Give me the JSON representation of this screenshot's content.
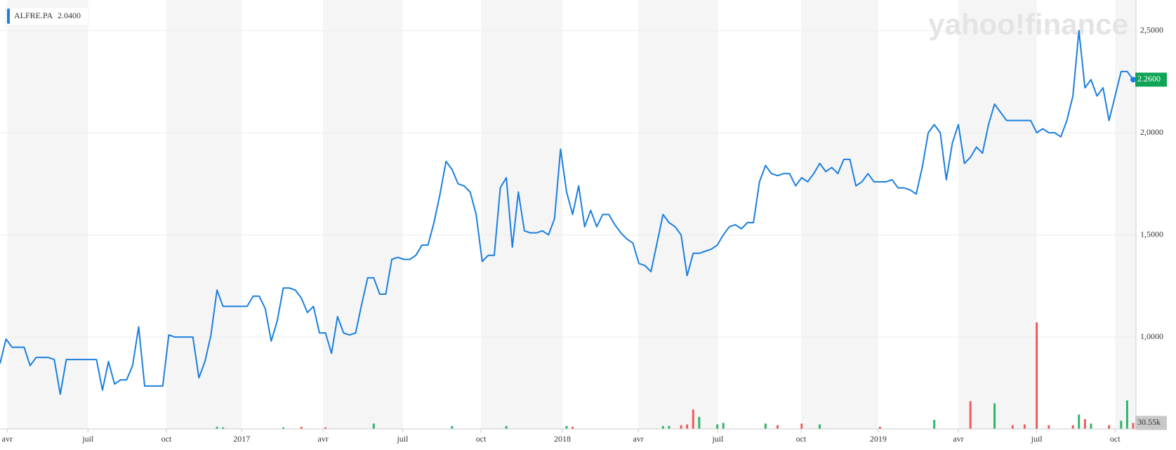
{
  "chart_data": [
    {
      "type": "line",
      "series": [
        {
          "name": "ALFRE.PA",
          "color": "#1a7fe0",
          "values": [
            0.87,
            0.99,
            0.95,
            0.95,
            0.95,
            0.86,
            0.9,
            0.9,
            0.9,
            0.89,
            0.72,
            0.89,
            0.89,
            0.89,
            0.89,
            0.89,
            0.89,
            0.74,
            0.88,
            0.77,
            0.79,
            0.79,
            0.86,
            1.05,
            0.76,
            0.76,
            0.76,
            0.76,
            1.01,
            1.0,
            1.0,
            1.0,
            1.0,
            0.8,
            0.88,
            1.01,
            1.23,
            1.15,
            1.15,
            1.15,
            1.15,
            1.15,
            1.2,
            1.2,
            1.14,
            0.98,
            1.08,
            1.24,
            1.24,
            1.23,
            1.19,
            1.12,
            1.15,
            1.02,
            1.02,
            0.92,
            1.1,
            1.02,
            1.01,
            1.02,
            1.16,
            1.29,
            1.29,
            1.21,
            1.21,
            1.38,
            1.39,
            1.38,
            1.38,
            1.4,
            1.45,
            1.45,
            1.56,
            1.7,
            1.86,
            1.82,
            1.75,
            1.74,
            1.71,
            1.6,
            1.37,
            1.4,
            1.4,
            1.73,
            1.78,
            1.44,
            1.71,
            1.52,
            1.51,
            1.51,
            1.52,
            1.5,
            1.58,
            1.92,
            1.71,
            1.6,
            1.74,
            1.54,
            1.62,
            1.54,
            1.6,
            1.6,
            1.55,
            1.51,
            1.48,
            1.46,
            1.36,
            1.35,
            1.32,
            1.46,
            1.6,
            1.56,
            1.54,
            1.5,
            1.3,
            1.41,
            1.41,
            1.42,
            1.43,
            1.45,
            1.5,
            1.54,
            1.55,
            1.53,
            1.56,
            1.56,
            1.76,
            1.84,
            1.8,
            1.79,
            1.8,
            1.8,
            1.74,
            1.78,
            1.76,
            1.8,
            1.85,
            1.81,
            1.83,
            1.8,
            1.87,
            1.87,
            1.74,
            1.76,
            1.8,
            1.76,
            1.76,
            1.76,
            1.77,
            1.73,
            1.73,
            1.72,
            1.7,
            1.83,
            2.0,
            2.04,
            2.0,
            1.77,
            1.95,
            2.04,
            1.85,
            1.88,
            1.93,
            1.9,
            2.04,
            2.14,
            2.1,
            2.06,
            2.06,
            2.06,
            2.06,
            2.06,
            2.0,
            2.02,
            2.0,
            2.0,
            1.98,
            2.06,
            2.18,
            2.5,
            2.22,
            2.26,
            2.18,
            2.22,
            2.06,
            2.18,
            2.3,
            2.3,
            2.26
          ]
        }
      ],
      "legend_value": {
        "value": 2.04,
        "label": "2.0400"
      },
      "current_label": "2.2600",
      "logo": "yahoo!finance",
      "xlim": [
        0,
        188
      ],
      "xticks": [
        {
          "value": 1.2,
          "label": "avr"
        },
        {
          "value": 14.6,
          "label": "juil"
        },
        {
          "value": 27.6,
          "label": "oct"
        },
        {
          "value": 40.1,
          "label": "2017"
        },
        {
          "value": 53.6,
          "label": "avr"
        },
        {
          "value": 66.8,
          "label": "juil"
        },
        {
          "value": 79.8,
          "label": "oct"
        },
        {
          "value": 93.3,
          "label": "2018"
        },
        {
          "value": 105.9,
          "label": "avr"
        },
        {
          "value": 119.1,
          "label": "juil"
        },
        {
          "value": 132.9,
          "label": "oct"
        },
        {
          "value": 145.7,
          "label": "2019"
        },
        {
          "value": 159,
          "label": "avr"
        },
        {
          "value": 172,
          "label": "juil"
        },
        {
          "value": 185,
          "label": "oct"
        }
      ],
      "ylim": [
        0.55,
        2.65
      ],
      "yticks": [
        {
          "value": 1.0,
          "label": "1,0000"
        },
        {
          "value": 1.5,
          "label": "1,5000"
        },
        {
          "value": 2.0,
          "label": "2,0000"
        },
        {
          "value": 2.5,
          "label": "2,5000"
        }
      ],
      "grid": true
    },
    {
      "type": "bar",
      "x": [
        36,
        37,
        47,
        50,
        54,
        62,
        75,
        84,
        94,
        95,
        110,
        111,
        113,
        114,
        115,
        116,
        119,
        120,
        127,
        129,
        133,
        136,
        146,
        155,
        161,
        165,
        168,
        170,
        172,
        174,
        178,
        179,
        180,
        181,
        184,
        186,
        187,
        188
      ],
      "values": [
        11,
        8,
        8,
        11,
        8,
        27,
        15,
        15,
        15,
        11,
        15,
        15,
        19,
        23,
        99,
        61,
        23,
        31,
        27,
        19,
        27,
        23,
        11,
        46,
        141,
        130,
        19,
        23,
        542,
        19,
        19,
        73,
        50,
        27,
        19,
        42,
        145,
        30.55
      ],
      "colors": [
        "#2fb56d",
        "#2fb56d",
        "#2fb56d",
        "#f05a5a",
        "#f05a5a",
        "#2fb56d",
        "#2fb56d",
        "#2fb56d",
        "#2fb56d",
        "#f05a5a",
        "#2fb56d",
        "#2fb56d",
        "#f05a5a",
        "#f05a5a",
        "#f05a5a",
        "#2fb56d",
        "#2fb56d",
        "#2fb56d",
        "#2fb56d",
        "#f05a5a",
        "#f05a5a",
        "#2fb56d",
        "#f05a5a",
        "#2fb56d",
        "#f05a5a",
        "#2fb56d",
        "#f05a5a",
        "#f05a5a",
        "#f05a5a",
        "#f05a5a",
        "#f05a5a",
        "#2fb56d",
        "#f05a5a",
        "#2fb56d",
        "#f05a5a",
        "#2fb56d",
        "#2fb56d",
        "#f05a5a"
      ],
      "current_label": "30.55k",
      "ylim": [
        0,
        600
      ]
    }
  ]
}
